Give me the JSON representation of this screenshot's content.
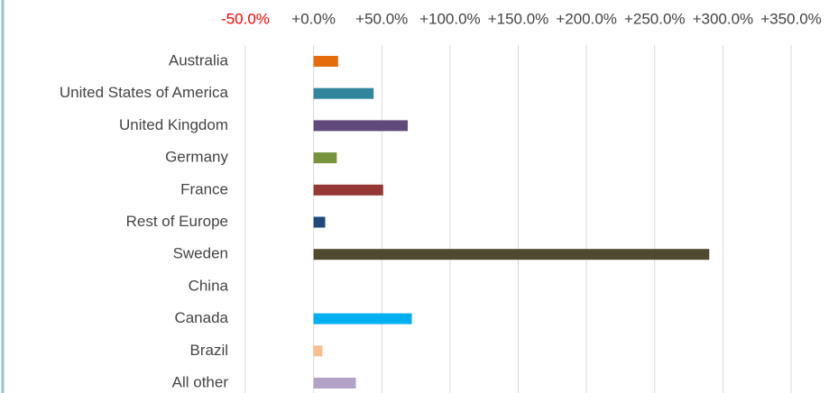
{
  "chart_data": {
    "type": "bar",
    "orientation": "horizontal",
    "categories": [
      "Australia",
      "United States of America",
      "United Kingdom",
      "Germany",
      "France",
      "Rest of Europe",
      "Sweden",
      "China",
      "Canada",
      "Brazil",
      "All other"
    ],
    "values": [
      18,
      44,
      69,
      17,
      51,
      8.5,
      290,
      0,
      72,
      6.5,
      31
    ],
    "colors": [
      "#e46c0a",
      "#31859c",
      "#604a7b",
      "#77933c",
      "#953735",
      "#1f497d",
      "#4f4a2f",
      "#4bacc6",
      "#00b0f0",
      "#fac090",
      "#b3a2c7"
    ],
    "xlim": [
      -50,
      350
    ],
    "xticks": [
      {
        "value": -50,
        "label": "-50.0%"
      },
      {
        "value": 0,
        "label": "+0.0%"
      },
      {
        "value": 50,
        "label": "+50.0%"
      },
      {
        "value": 100,
        "label": "+100.0%"
      },
      {
        "value": 150,
        "label": "+150.0%"
      },
      {
        "value": 200,
        "label": "+200.0%"
      },
      {
        "value": 250,
        "label": "+250.0%"
      },
      {
        "value": 300,
        "label": "+300.0%"
      },
      {
        "value": 350,
        "label": "+350.0%"
      }
    ],
    "negative_tick_color": "#ff0000",
    "grid": true
  }
}
